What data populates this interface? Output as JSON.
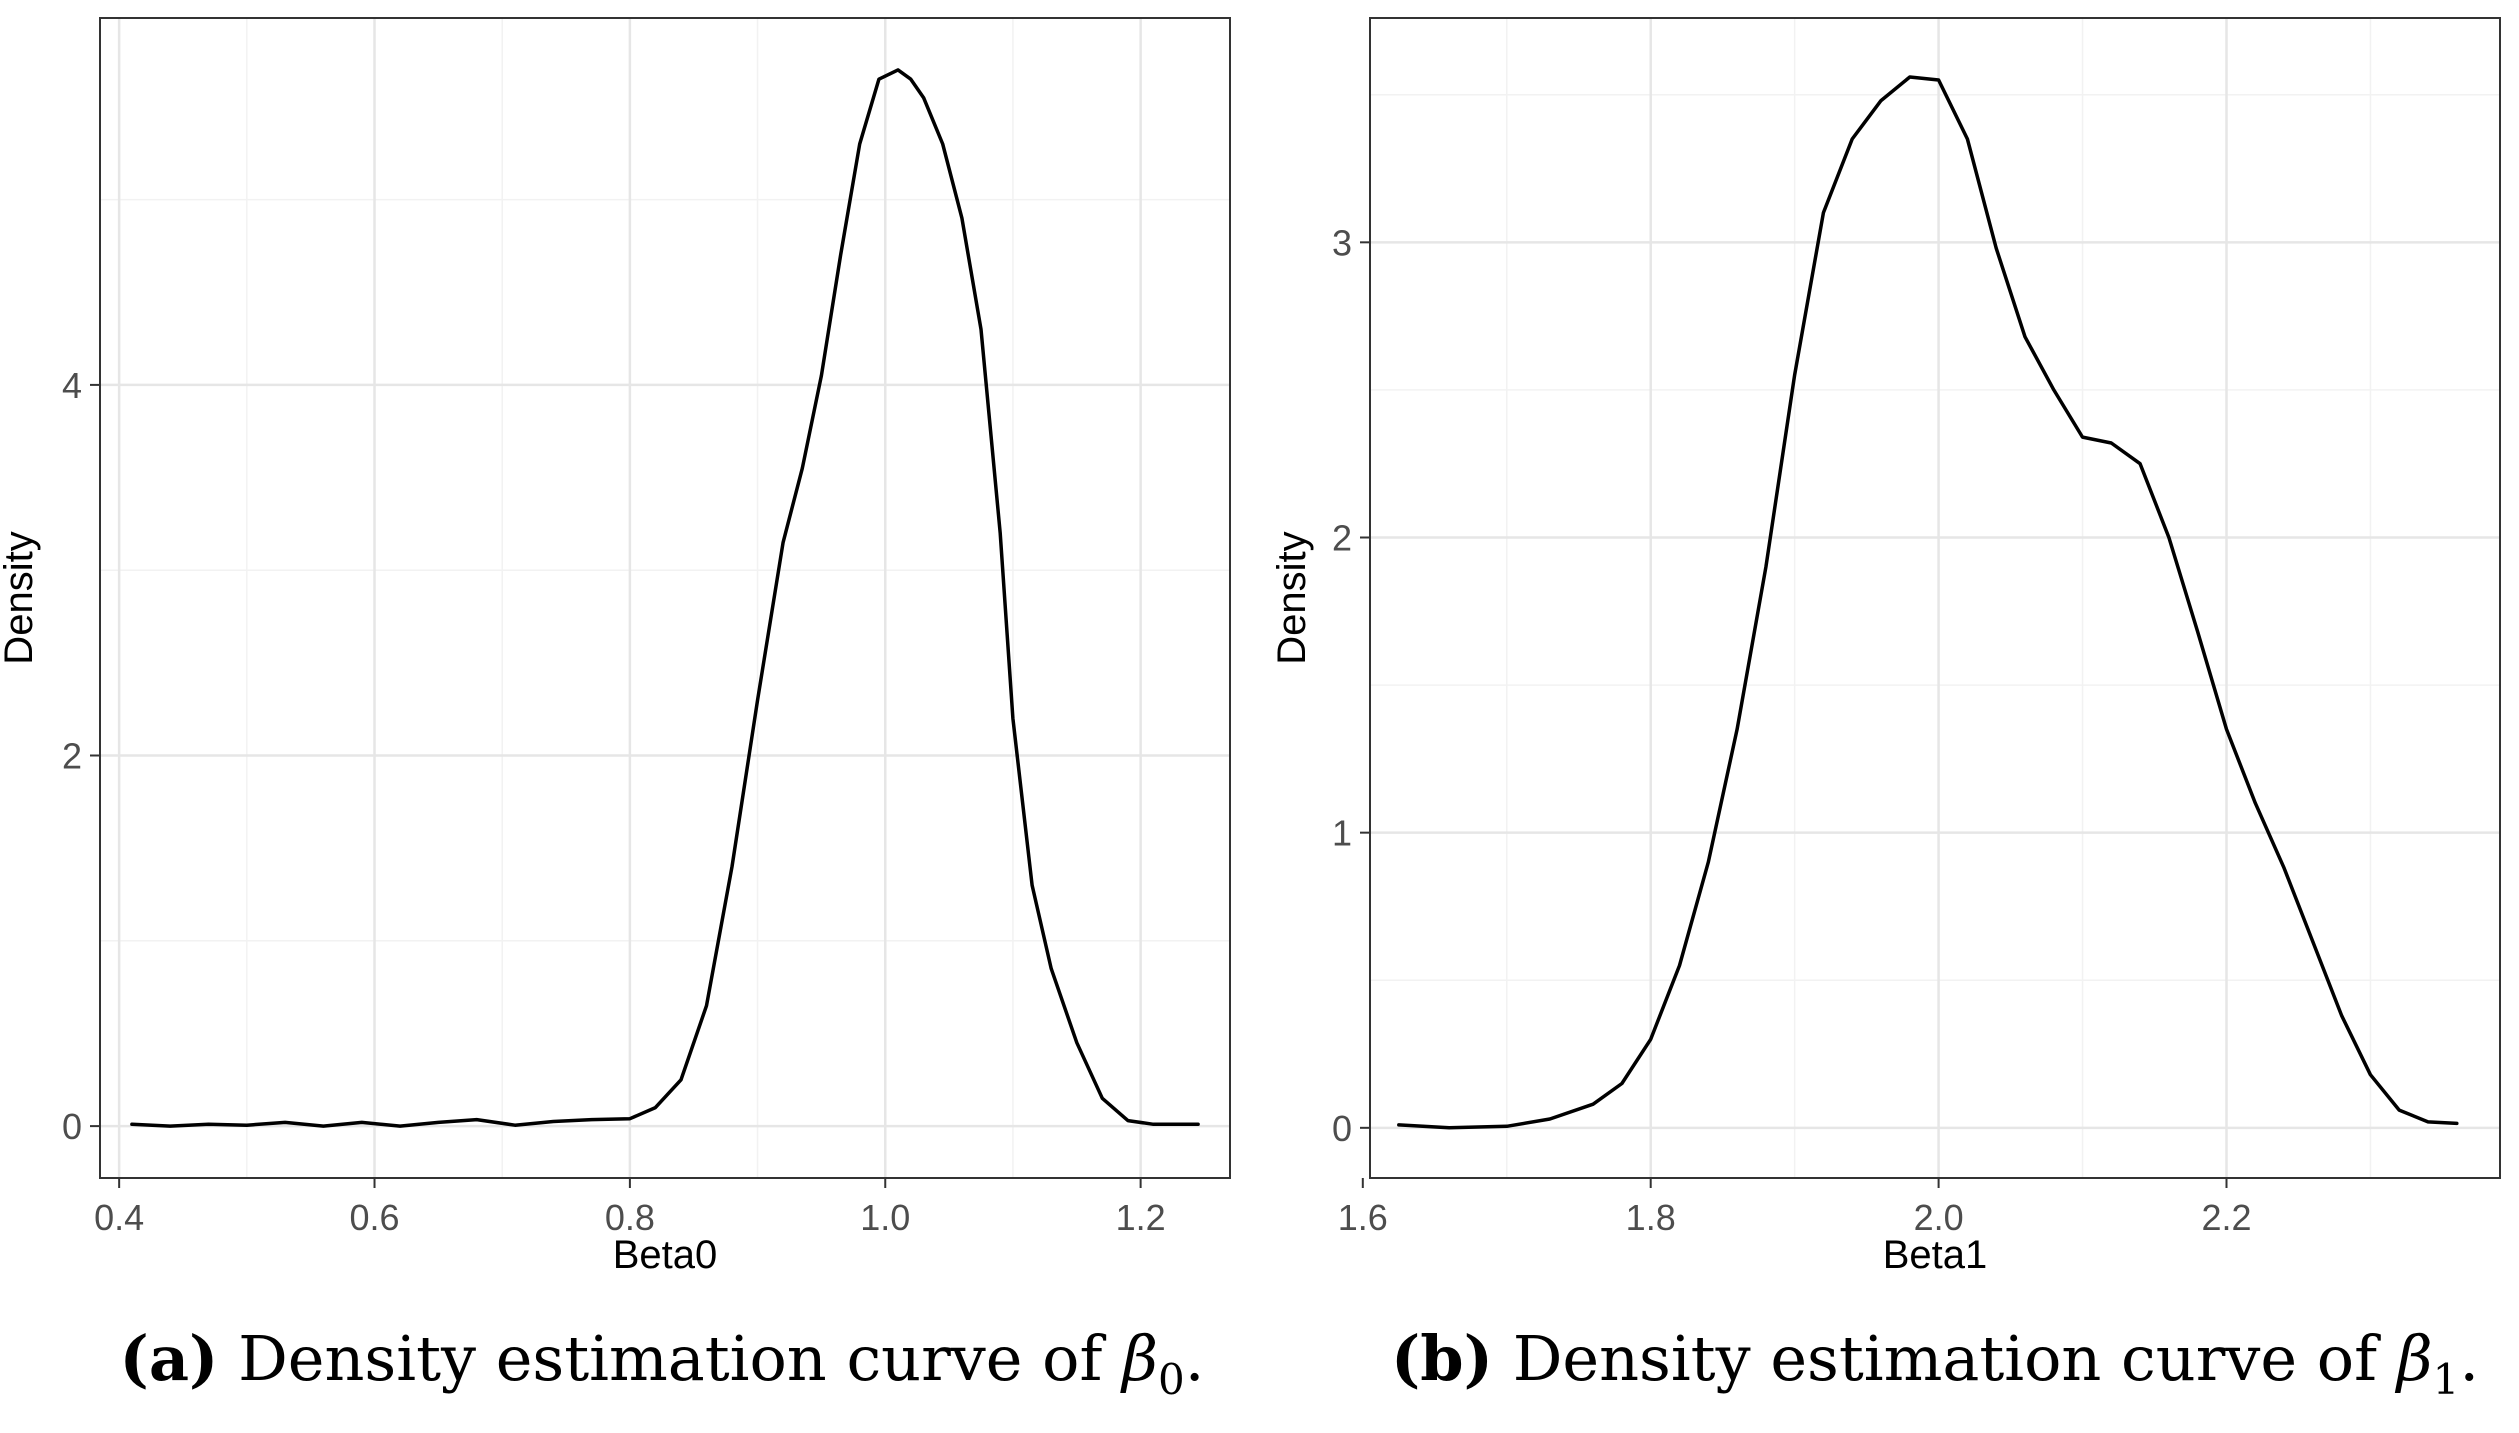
{
  "chart_data": [
    {
      "id": "a",
      "type": "line",
      "xlabel": "Beta0",
      "ylabel": "Density",
      "xlim": [
        0.385,
        1.27
      ],
      "ylim": [
        -0.28,
        5.98
      ],
      "xticks": [
        0.4,
        0.6,
        0.8,
        1.0,
        1.2
      ],
      "xtick_labels": [
        "0.4",
        "0.6",
        "0.8",
        "1.0",
        "1.2"
      ],
      "yticks": [
        0,
        2,
        4
      ],
      "ytick_labels": [
        "0",
        "2",
        "4"
      ],
      "grid": true,
      "series": [
        {
          "name": "density",
          "x": [
            0.41,
            0.44,
            0.47,
            0.5,
            0.53,
            0.56,
            0.59,
            0.62,
            0.65,
            0.68,
            0.71,
            0.74,
            0.77,
            0.8,
            0.82,
            0.84,
            0.86,
            0.88,
            0.9,
            0.92,
            0.935,
            0.95,
            0.965,
            0.98,
            0.995,
            1.01,
            1.02,
            1.03,
            1.045,
            1.06,
            1.075,
            1.09,
            1.1,
            1.115,
            1.13,
            1.15,
            1.17,
            1.19,
            1.21,
            1.245
          ],
          "y": [
            0.01,
            0.0,
            0.01,
            0.005,
            0.02,
            0.0,
            0.02,
            0.0,
            0.02,
            0.035,
            0.005,
            0.025,
            0.035,
            0.04,
            0.1,
            0.25,
            0.65,
            1.4,
            2.3,
            3.15,
            3.55,
            4.05,
            4.7,
            5.3,
            5.65,
            5.7,
            5.65,
            5.55,
            5.3,
            4.9,
            4.3,
            3.2,
            2.2,
            1.3,
            0.85,
            0.45,
            0.15,
            0.03,
            0.01,
            0.01
          ]
        }
      ],
      "caption": {
        "label": "(a)",
        "text": " Density estimation curve of ",
        "symbol": "β",
        "subscript": "0",
        "end": "."
      }
    },
    {
      "id": "b",
      "type": "line",
      "xlabel": "Beta1",
      "ylabel": "Density",
      "xlim": [
        1.605,
        2.39
      ],
      "ylim": [
        -0.17,
        3.76
      ],
      "xticks": [
        1.6,
        1.8,
        2.0,
        2.2
      ],
      "xtick_labels": [
        "1.6",
        "1.8",
        "2.0",
        "2.2"
      ],
      "yticks": [
        0,
        1,
        2,
        3
      ],
      "ytick_labels": [
        "0",
        "1",
        "2",
        "3"
      ],
      "grid": true,
      "series": [
        {
          "name": "density",
          "x": [
            1.625,
            1.66,
            1.7,
            1.73,
            1.76,
            1.78,
            1.8,
            1.82,
            1.84,
            1.86,
            1.88,
            1.9,
            1.92,
            1.94,
            1.96,
            1.98,
            2.0,
            2.02,
            2.04,
            2.06,
            2.08,
            2.1,
            2.12,
            2.14,
            2.16,
            2.18,
            2.2,
            2.22,
            2.24,
            2.26,
            2.28,
            2.3,
            2.32,
            2.34,
            2.36
          ],
          "y": [
            0.01,
            0.0,
            0.005,
            0.03,
            0.08,
            0.15,
            0.3,
            0.55,
            0.9,
            1.35,
            1.9,
            2.55,
            3.1,
            3.35,
            3.48,
            3.56,
            3.55,
            3.35,
            2.98,
            2.68,
            2.5,
            2.34,
            2.32,
            2.25,
            2.0,
            1.68,
            1.35,
            1.1,
            0.88,
            0.63,
            0.38,
            0.18,
            0.06,
            0.02,
            0.015
          ]
        }
      ],
      "caption": {
        "label": "(b)",
        "text": " Density estimation curve of ",
        "symbol": "β",
        "subscript": "1",
        "end": "."
      }
    }
  ]
}
